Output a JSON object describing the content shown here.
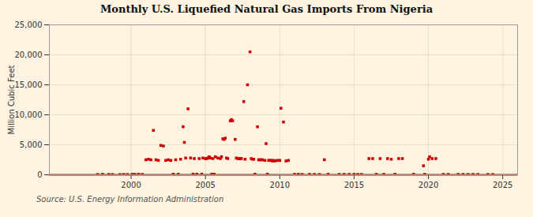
{
  "chart_data": {
    "type": "scatter",
    "title": "Monthly U.S. Liquefied Natural Gas Imports From Nigeria",
    "ylabel": "Million Cubic Feet",
    "source": "Source: U.S. Energy Information Administration",
    "color": "#cc0000",
    "marker": "square",
    "grid": true,
    "xlim": [
      1994.5,
      2026
    ],
    "ylim": [
      0,
      25000
    ],
    "xticks": [
      2000,
      2005,
      2010,
      2015,
      2020,
      2025
    ],
    "yticks": [
      0,
      {
        "value": 5000,
        "label": "5,000"
      },
      {
        "value": 10000,
        "label": "10,000"
      },
      {
        "value": 15000,
        "label": "15,000"
      },
      {
        "value": 20000,
        "label": "20,000"
      },
      {
        "value": 25000,
        "label": "25,000"
      }
    ],
    "x": [
      1997.75,
      1998.08,
      1998.5,
      1998.75,
      1999.25,
      1999.5,
      1999.75,
      2000.08,
      2000.25,
      2000.5,
      2000.75,
      2001.0,
      2001.17,
      2001.33,
      2001.5,
      2001.67,
      2001.83,
      2002.0,
      2002.17,
      2002.33,
      2002.5,
      2002.67,
      2002.83,
      2003.0,
      2003.17,
      2003.33,
      2003.5,
      2003.58,
      2003.67,
      2003.83,
      2004.0,
      2004.17,
      2004.25,
      2004.42,
      2004.58,
      2004.75,
      2004.83,
      2005.0,
      2005.08,
      2005.17,
      2005.25,
      2005.33,
      2005.42,
      2005.5,
      2005.58,
      2005.67,
      2005.83,
      2006.0,
      2006.08,
      2006.17,
      2006.25,
      2006.33,
      2006.42,
      2006.5,
      2006.67,
      2006.75,
      2006.83,
      2007.0,
      2007.08,
      2007.17,
      2007.25,
      2007.33,
      2007.42,
      2007.58,
      2007.67,
      2007.83,
      2008.0,
      2008.08,
      2008.17,
      2008.25,
      2008.33,
      2008.5,
      2008.58,
      2008.67,
      2008.75,
      2008.83,
      2009.0,
      2009.08,
      2009.17,
      2009.25,
      2009.33,
      2009.42,
      2009.5,
      2009.58,
      2009.67,
      2009.83,
      2010.0,
      2010.08,
      2010.25,
      2010.42,
      2010.58,
      2011.0,
      2011.25,
      2011.5,
      2012.0,
      2012.33,
      2012.67,
      2013.0,
      2013.25,
      2014.0,
      2014.33,
      2014.67,
      2015.0,
      2015.25,
      2015.5,
      2016.0,
      2016.25,
      2016.5,
      2016.75,
      2017.0,
      2017.25,
      2017.5,
      2017.75,
      2018.0,
      2018.25,
      2019.0,
      2019.67,
      2019.75,
      2020.0,
      2020.08,
      2020.25,
      2020.5,
      2021.0,
      2021.33,
      2022.0,
      2022.33,
      2022.67,
      2023.0,
      2023.33,
      2024.0,
      2024.33
    ],
    "values": [
      50,
      80,
      60,
      40,
      30,
      50,
      40,
      80,
      60,
      90,
      60,
      2500,
      2600,
      2500,
      7400,
      2500,
      2400,
      4900,
      4800,
      2400,
      2500,
      2400,
      100,
      2500,
      100,
      2600,
      8000,
      5400,
      2800,
      11000,
      2800,
      100,
      2700,
      100,
      2700,
      100,
      2800,
      2700,
      2700,
      2800,
      3000,
      2800,
      100,
      2700,
      100,
      3000,
      2800,
      2700,
      3000,
      6000,
      5900,
      6100,
      2800,
      2700,
      9000,
      9200,
      9000,
      5900,
      2800,
      2700,
      2700,
      2700,
      2700,
      12200,
      2600,
      15000,
      20500,
      2700,
      2600,
      2600,
      100,
      8000,
      2500,
      2500,
      2500,
      2500,
      2400,
      5200,
      100,
      2400,
      2400,
      2400,
      2300,
      2400,
      2300,
      2400,
      2400,
      11100,
      8800,
      2300,
      2400,
      80,
      70,
      60,
      70,
      60,
      50,
      2500,
      80,
      60,
      70,
      60,
      70,
      60,
      50,
      2700,
      2700,
      80,
      2700,
      70,
      2700,
      2600,
      80,
      2700,
      2700,
      80,
      1500,
      80,
      2600,
      3000,
      2700,
      2700,
      70,
      60,
      60,
      60,
      50,
      60,
      60,
      50,
      40
    ]
  }
}
